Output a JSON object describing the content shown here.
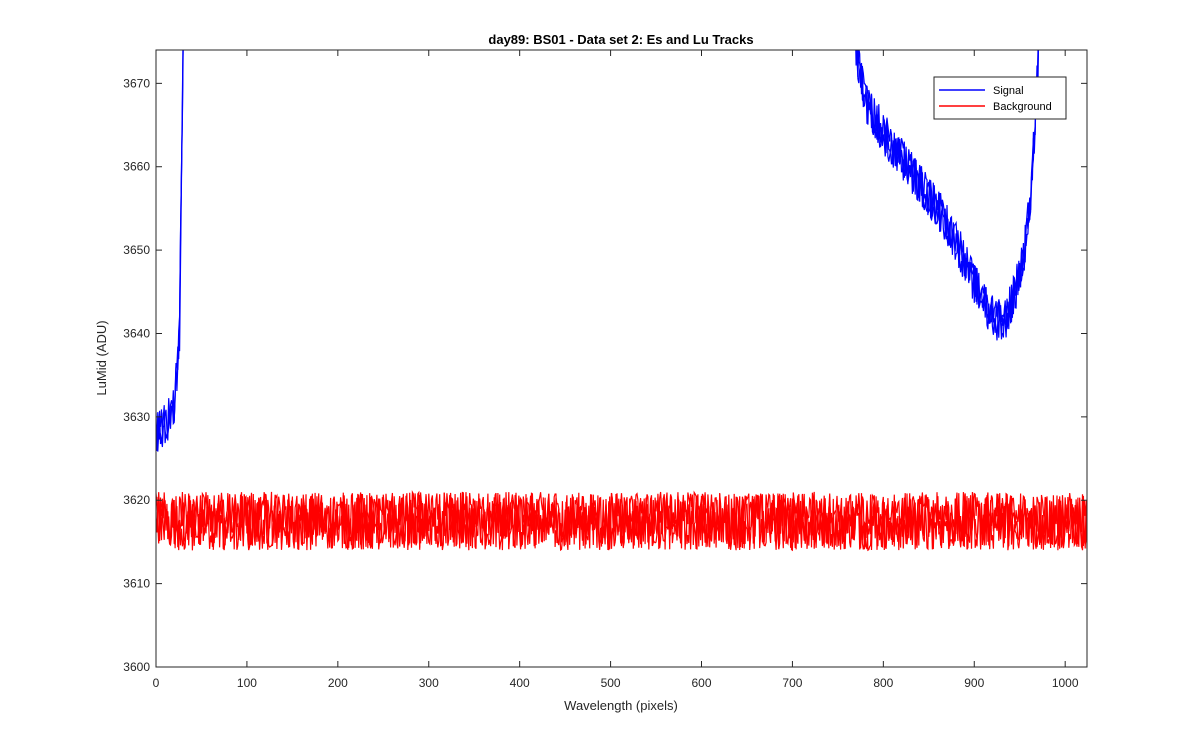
{
  "chart_data": {
    "type": "line",
    "title": "day89: BS01 - Data set 2: Es and Lu Tracks",
    "xlabel": "Wavelength (pixels)",
    "ylabel": "LuMid (ADU)",
    "xlim": [
      0,
      1024
    ],
    "ylim": [
      3600,
      3674
    ],
    "xticks": [
      0,
      100,
      200,
      300,
      400,
      500,
      600,
      700,
      800,
      900,
      1000
    ],
    "yticks": [
      3600,
      3610,
      3620,
      3630,
      3640,
      3650,
      3660,
      3670
    ],
    "grid": false,
    "legend_position": "top-right",
    "traces_per_series": 3,
    "series": [
      {
        "name": "Signal",
        "color": "#0000ff",
        "x": [
          0,
          10,
          20,
          26,
          28,
          30,
          32,
          760,
          770,
          780,
          800,
          820,
          840,
          860,
          880,
          900,
          915,
          925,
          935,
          945,
          955,
          962,
          966,
          970,
          974
        ],
        "values": [
          3628,
          3629,
          3631,
          3640,
          3660,
          3676,
          3690,
          3690,
          3674,
          3668,
          3664,
          3661,
          3658,
          3655,
          3651,
          3646,
          3643,
          3641.5,
          3642,
          3645,
          3650,
          3656,
          3664,
          3672,
          3690
        ],
        "noise_amplitude": 2.5
      },
      {
        "name": "Background",
        "color": "#ff0000",
        "x": [
          0,
          1024
        ],
        "values": [
          3617.5,
          3617.5
        ],
        "noise_amplitude": 3.5
      }
    ]
  }
}
